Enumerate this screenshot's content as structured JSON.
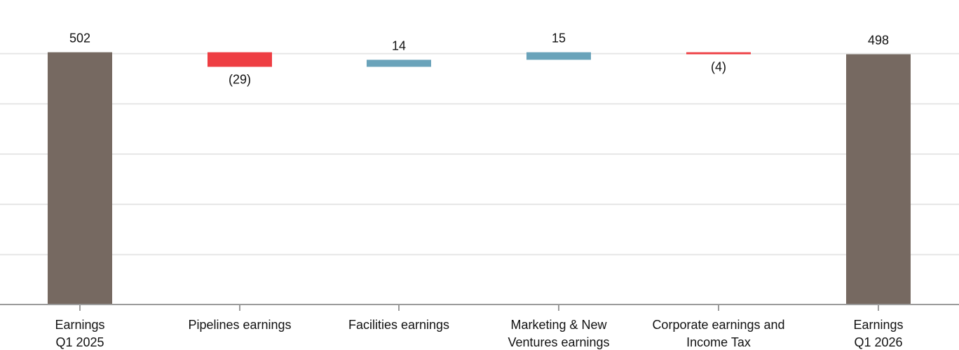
{
  "chart_data": {
    "type": "bar",
    "subtype": "waterfall",
    "title": "",
    "xlabel": "",
    "ylabel": "",
    "ylim": [
      0,
      560
    ],
    "grid": true,
    "yticks": [
      0,
      100,
      200,
      300,
      400,
      500
    ],
    "categories": [
      [
        "Earnings",
        "Q1 2025"
      ],
      [
        "Pipelines earnings"
      ],
      [
        "Facilities earnings"
      ],
      [
        "Marketing & New",
        "Ventures earnings"
      ],
      [
        "Corporate earnings and",
        "Income Tax"
      ],
      [
        "Earnings",
        "Q1 2026"
      ]
    ],
    "bars": [
      {
        "kind": "total",
        "start": 0,
        "end": 502,
        "label": "502"
      },
      {
        "kind": "decrease",
        "start": 502,
        "end": 473,
        "label": "(29)"
      },
      {
        "kind": "increase",
        "start": 473,
        "end": 487,
        "label": "14"
      },
      {
        "kind": "increase",
        "start": 487,
        "end": 502,
        "label": "15"
      },
      {
        "kind": "decrease",
        "start": 502,
        "end": 498,
        "label": "(4)"
      },
      {
        "kind": "total",
        "start": 0,
        "end": 498,
        "label": "498"
      }
    ],
    "colors": {
      "total": "#766961",
      "increase": "#6aa3ba",
      "decrease": "#ee3e43"
    }
  }
}
